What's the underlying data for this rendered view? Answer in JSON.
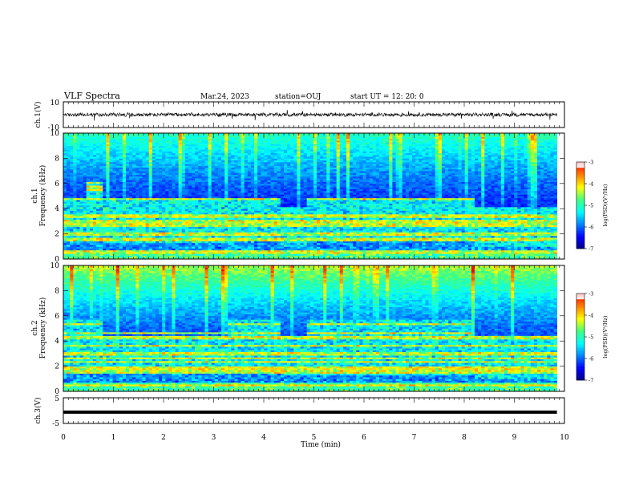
{
  "header": {
    "title": "VLF Spectra",
    "date": "Mar.24, 2023",
    "station": "station=OUJ",
    "start": "start  UT  =   12: 20: 0"
  },
  "chart_data": [
    {
      "type": "line",
      "name": "ch1-waveform",
      "ylabel": "ch.1(V)",
      "ylim": [
        -10,
        10
      ],
      "ytick_labels": [
        "10",
        "-10"
      ]
    },
    {
      "type": "heatmap",
      "name": "ch1-spectrogram",
      "ylabel_top": "ch.1",
      "ylabel": "Frequency (kHz)",
      "ylim": [
        0,
        10
      ],
      "ytick_labels": [
        "0",
        "2",
        "4",
        "6",
        "8",
        "10"
      ],
      "colorbar": {
        "label": "log(PSD)(V²/Hz)",
        "range": [
          -7,
          -3
        ],
        "tick_labels": [
          "-3",
          "-4",
          "-5",
          "-6",
          "-7"
        ]
      },
      "segments": [
        {
          "t": [
            0.0,
            0.45
          ],
          "band": [
            1.4,
            4.7
          ]
        },
        {
          "t": [
            0.45,
            0.75
          ],
          "band": [
            1.4,
            5.9
          ]
        },
        {
          "t": [
            0.75,
            3.25
          ],
          "band": [
            1.2,
            4.6
          ]
        },
        {
          "t": [
            3.25,
            4.3
          ],
          "band": [
            1.5,
            4.8
          ]
        },
        {
          "t": [
            4.3,
            4.8
          ],
          "band": [
            1.0,
            4.0
          ]
        },
        {
          "t": [
            4.8,
            8.2
          ],
          "band": [
            1.5,
            4.8
          ]
        },
        {
          "t": [
            8.2,
            9.85
          ],
          "band": [
            1.0,
            4.0
          ]
        }
      ]
    },
    {
      "type": "heatmap",
      "name": "ch2-spectrogram",
      "ylabel_top": "ch.2",
      "ylabel": "Frequency (kHz)",
      "ylim": [
        0,
        10
      ],
      "ytick_labels": [
        "0",
        "2",
        "4",
        "6",
        "8",
        "10"
      ],
      "colorbar": {
        "label": "log(PSD)(V²/Hz)",
        "range": [
          -7,
          -3
        ],
        "tick_labels": [
          "-3",
          "-4",
          "-5",
          "-6",
          "-7"
        ]
      },
      "segments": [
        {
          "t": [
            0.0,
            0.75
          ],
          "band": [
            1.5,
            5.6
          ]
        },
        {
          "t": [
            0.75,
            3.25
          ],
          "band": [
            1.3,
            4.4
          ]
        },
        {
          "t": [
            3.25,
            4.3
          ],
          "band": [
            1.4,
            5.7
          ]
        },
        {
          "t": [
            4.3,
            4.8
          ],
          "band": [
            1.2,
            4.2
          ]
        },
        {
          "t": [
            4.8,
            8.2
          ],
          "band": [
            1.2,
            5.7
          ]
        },
        {
          "t": [
            8.2,
            9.85
          ],
          "band": [
            1.0,
            4.2
          ]
        }
      ]
    },
    {
      "type": "line",
      "name": "ch3-waveform",
      "ylabel": "ch.3(V)",
      "ylim": [
        -5,
        5
      ],
      "ytick_labels": [
        "5",
        "-5"
      ],
      "flat_value": -0.6
    }
  ],
  "x_axis": {
    "label": "Time (min)",
    "xlim": [
      0,
      10
    ],
    "tick_labels": [
      "0",
      "1",
      "2",
      "3",
      "4",
      "5",
      "6",
      "7",
      "8",
      "9",
      "10"
    ],
    "data_end": 9.85
  },
  "colors": {
    "cmap": [
      "#000080",
      "#0000ff",
      "#0080ff",
      "#00ffff",
      "#40ff80",
      "#ffff00",
      "#ff8000",
      "#ff0000",
      "#ffffff"
    ]
  }
}
